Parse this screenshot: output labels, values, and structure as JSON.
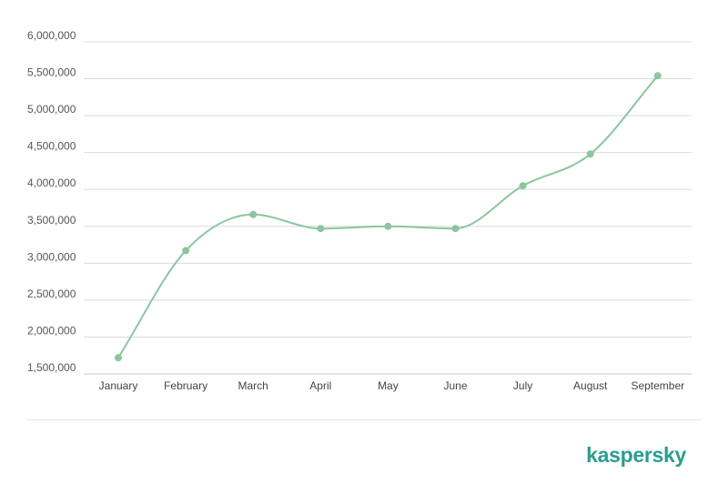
{
  "chart_data": {
    "type": "line",
    "categories": [
      "January",
      "February",
      "March",
      "April",
      "May",
      "June",
      "July",
      "August",
      "September"
    ],
    "series": [
      {
        "values": [
          1720000,
          3170000,
          3660000,
          3470000,
          3500000,
          3470000,
          4050000,
          4480000,
          5540000
        ]
      }
    ],
    "ylim": [
      1500000,
      6000000
    ],
    "yticks": [
      "1,500,000",
      "2,000,000",
      "2,500,000",
      "3,000,000",
      "3,500,000",
      "4,000,000",
      "4,500,000",
      "5,000,000",
      "5,500,000",
      "6,000,000"
    ],
    "ytick_values": [
      1500000,
      2000000,
      2500000,
      3000000,
      3500000,
      4000000,
      4500000,
      5000000,
      5500000,
      6000000
    ],
    "grid": true,
    "line_color": "#8cc5a0"
  },
  "brand": {
    "logo_text": "kaspersky",
    "logo_color": "#2a9d8f"
  }
}
